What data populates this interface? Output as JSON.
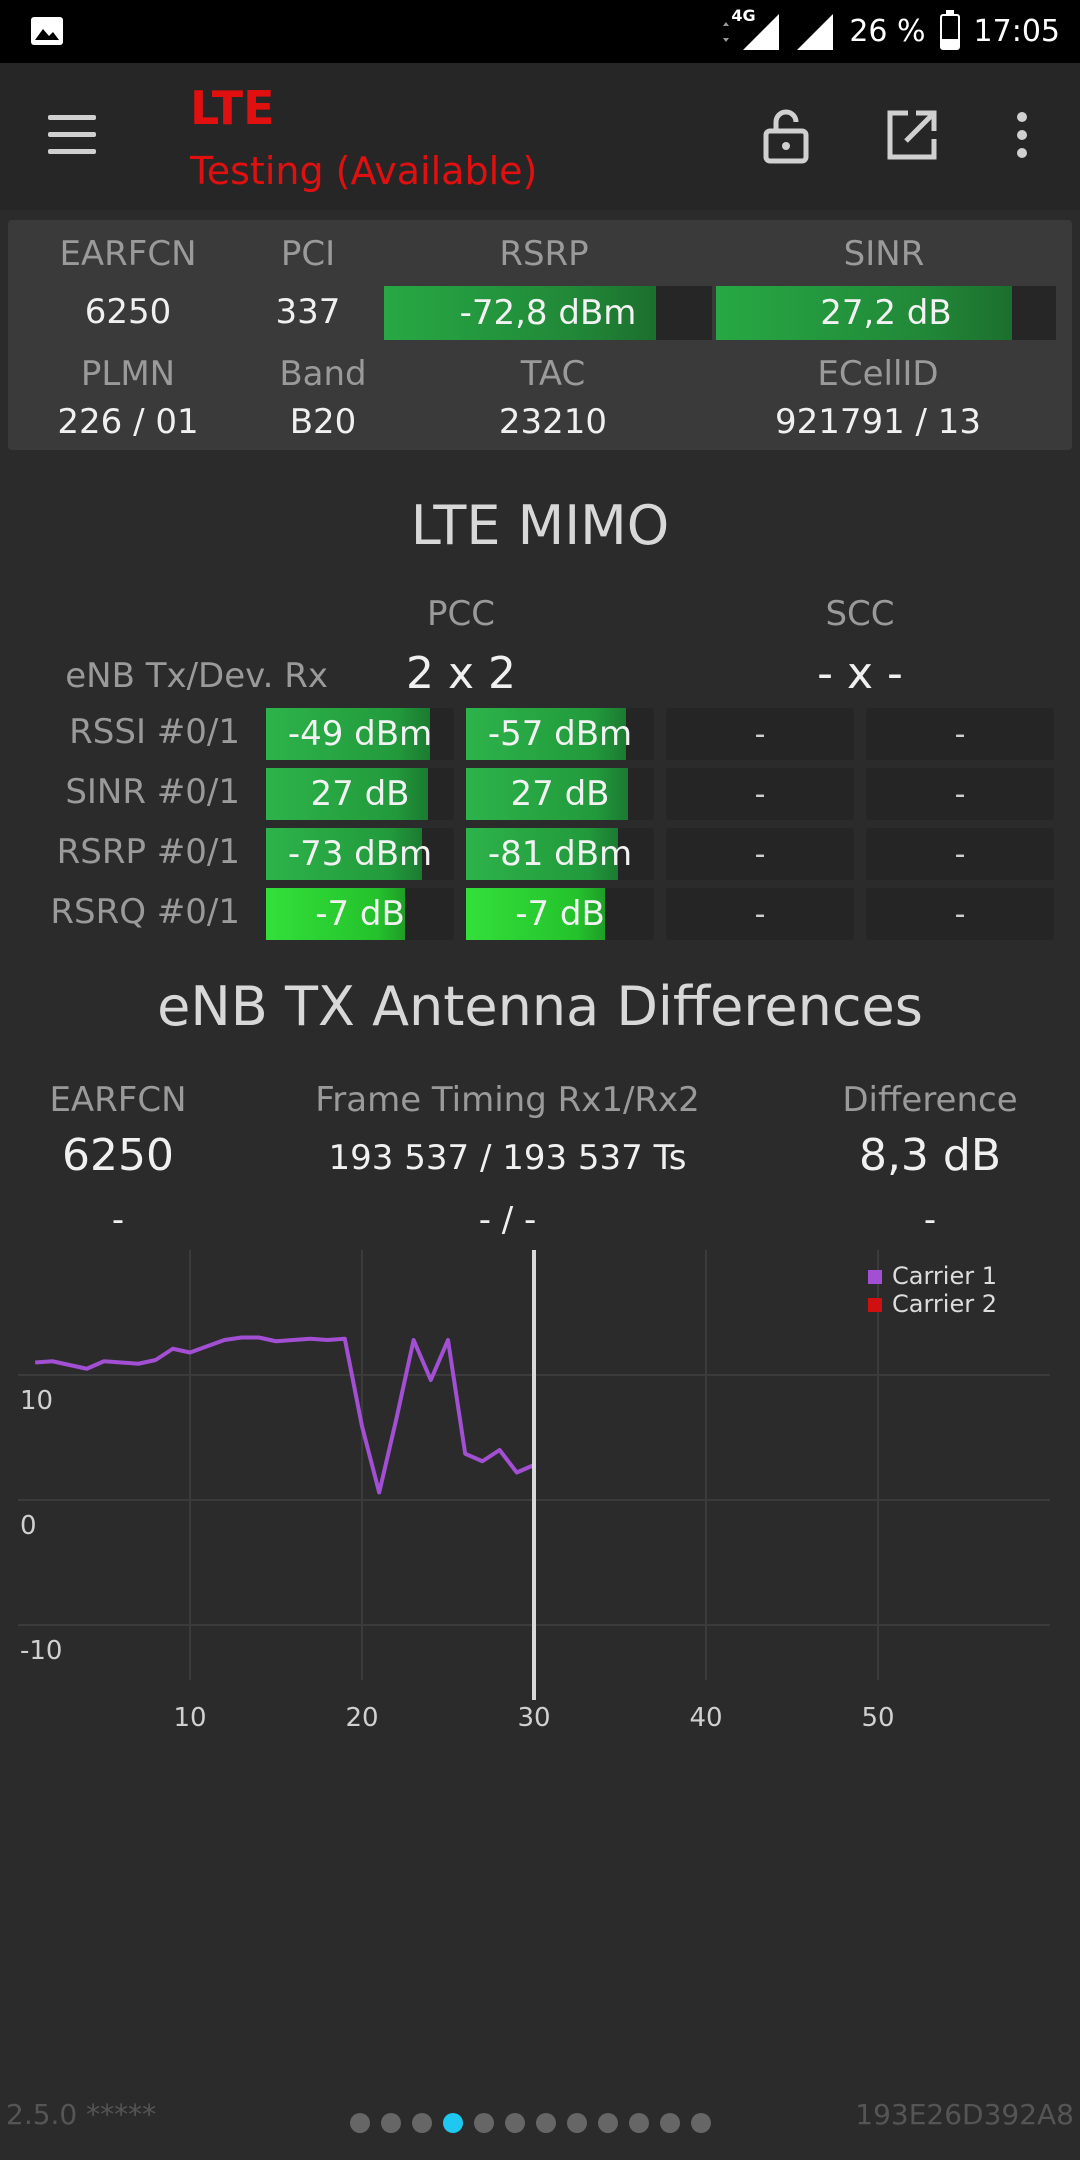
{
  "status_bar": {
    "network": "4G",
    "battery": "26 %",
    "battery_level": 0.26,
    "time": "17:05"
  },
  "app_bar": {
    "title": "LTE",
    "subtitle": "Testing (Available)",
    "icons": [
      "menu-icon",
      "unlock-icon",
      "open-external-icon",
      "more-vert-icon"
    ]
  },
  "cell_info": {
    "earfcn_label": "EARFCN",
    "earfcn": "6250",
    "pci_label": "PCI",
    "pci": "337",
    "rsrp_label": "RSRP",
    "rsrp": "-72,8 dBm",
    "rsrp_level": 0.83,
    "sinr_label": "SINR",
    "sinr": "27,2 dB",
    "sinr_level": 0.87,
    "plmn_label": "PLMN",
    "plmn": "226 / 01",
    "band_label": "Band",
    "band": "B20",
    "tac_label": "TAC",
    "tac": "23210",
    "ecellid_label": "ECellID",
    "ecellid": "921791 / 13"
  },
  "mimo": {
    "title": "LTE MIMO",
    "pcc_label": "PCC",
    "scc_label": "SCC",
    "tx_rx_label": "eNB Tx/Dev. Rx",
    "pcc_tx_rx": "2 x 2",
    "scc_tx_rx": "- x -",
    "rows": [
      {
        "label": "RSSI #0/1",
        "v0": "-49 dBm",
        "l0": 0.87,
        "v1": "-57 dBm",
        "l1": 0.85,
        "v2": "-",
        "v3": "-",
        "tone": "green"
      },
      {
        "label": "SINR #0/1",
        "v0": "27 dB",
        "l0": 0.86,
        "v1": "27 dB",
        "l1": 0.86,
        "v2": "-",
        "v3": "-",
        "tone": "green"
      },
      {
        "label": "RSRP #0/1",
        "v0": "-73 dBm",
        "l0": 0.83,
        "v1": "-81 dBm",
        "l1": 0.81,
        "v2": "-",
        "v3": "-",
        "tone": "green"
      },
      {
        "label": "RSRQ #0/1",
        "v0": "-7 dB",
        "l0": 0.74,
        "v1": "-7 dB",
        "l1": 0.74,
        "v2": "-",
        "v3": "-",
        "tone": "lime"
      }
    ]
  },
  "antenna": {
    "title": "eNB TX Antenna Differences",
    "earfcn_label": "EARFCN",
    "earfcn": "6250",
    "earfcn_2": "-",
    "timing_label": "Frame Timing Rx1/Rx2",
    "timing": "193 537 / 193 537 Ts",
    "timing_2": "- / -",
    "diff_label": "Difference",
    "diff": "8,3 dB",
    "diff_2": "-"
  },
  "chart_data": {
    "type": "line",
    "xlim": [
      0,
      60
    ],
    "ylim": [
      -16,
      20
    ],
    "x_ticks": [
      "10",
      "20",
      "30",
      "40",
      "50"
    ],
    "y_ticks": [
      "10",
      "0",
      "-10"
    ],
    "grid": true,
    "legend_position": "top-right",
    "cursor_x": 30,
    "series": [
      {
        "name": "Carrier 1",
        "color": "#a24fd4",
        "x": [
          1,
          2,
          3,
          4,
          5,
          6,
          7,
          8,
          9,
          10,
          11,
          12,
          13,
          14,
          15,
          16,
          17,
          18,
          19,
          20,
          21,
          22,
          23,
          24,
          25,
          26,
          27,
          28,
          29,
          30
        ],
        "y": [
          11,
          11.1,
          10.8,
          10.5,
          11.1,
          11,
          10.9,
          11.2,
          12.1,
          11.8,
          12.3,
          12.8,
          13,
          13,
          12.7,
          12.8,
          12.9,
          12.8,
          12.9,
          5.9,
          0.6,
          6.5,
          12.8,
          9.6,
          12.8,
          3.7,
          3.1,
          4.0,
          2.2,
          2.8
        ]
      },
      {
        "name": "Carrier 2",
        "color": "#d01010",
        "x": [],
        "y": []
      }
    ]
  },
  "footer": {
    "version": "2.5.0 *****",
    "device_id": "193E26D392A8",
    "page_count": 12,
    "active_page": 4
  }
}
